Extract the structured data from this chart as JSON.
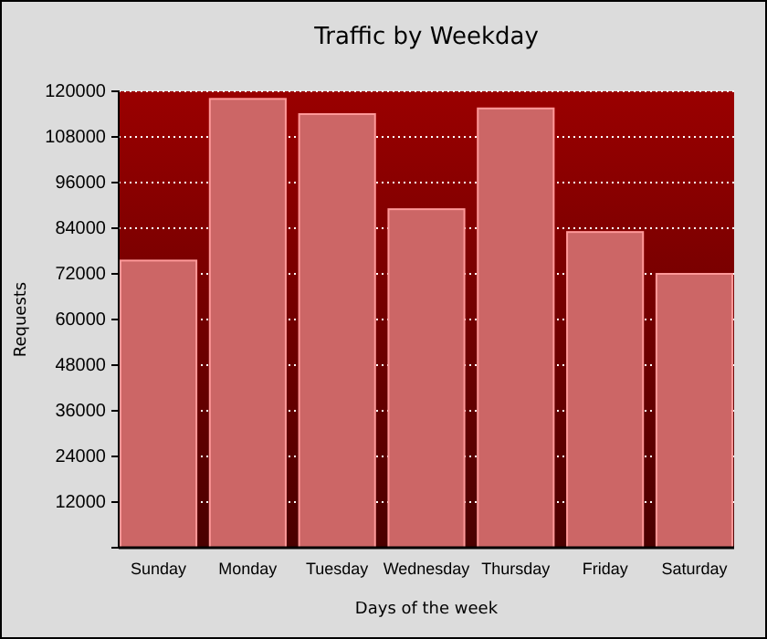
{
  "chart_data": {
    "type": "bar",
    "title": "Traffic by Weekday",
    "xlabel": "Days of the week",
    "ylabel": "Requests",
    "categories": [
      "Sunday",
      "Monday",
      "Tuesday",
      "Wednesday",
      "Thursday",
      "Friday",
      "Saturday"
    ],
    "values": [
      75500,
      118000,
      114000,
      89000,
      115500,
      83000,
      72000
    ],
    "color": "#cc6666",
    "ylim": [
      0,
      120000
    ],
    "yticks": [
      12000,
      24000,
      36000,
      48000,
      60000,
      72000,
      84000,
      96000,
      108000,
      120000
    ],
    "grid": "y"
  }
}
